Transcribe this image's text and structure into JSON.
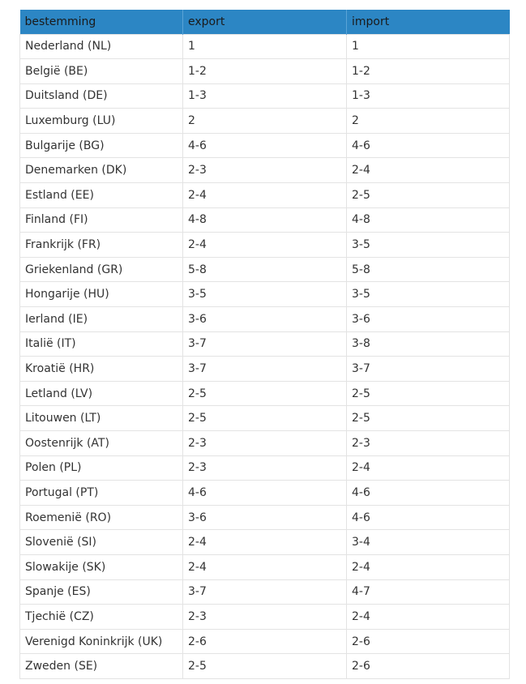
{
  "table": {
    "headers": [
      "bestemming",
      "export",
      "import"
    ],
    "rows": [
      [
        "Nederland (NL)",
        "1",
        "1"
      ],
      [
        "België (BE)",
        "1-2",
        "1-2"
      ],
      [
        "Duitsland (DE)",
        "1-3",
        "1-3"
      ],
      [
        "Luxemburg (LU)",
        "2",
        "2"
      ],
      [
        "Bulgarije (BG)",
        "4-6",
        "4-6"
      ],
      [
        "Denemarken (DK)",
        "2-3",
        "2-4"
      ],
      [
        "Estland (EE)",
        "2-4",
        "2-5"
      ],
      [
        "Finland (FI)",
        "4-8",
        "4-8"
      ],
      [
        "Frankrijk (FR)",
        "2-4",
        "3-5"
      ],
      [
        "Griekenland (GR)",
        "5-8",
        "5-8"
      ],
      [
        "Hongarije (HU)",
        "3-5",
        "3-5"
      ],
      [
        "Ierland (IE)",
        "3-6",
        "3-6"
      ],
      [
        "Italië (IT)",
        "3-7",
        "3-8"
      ],
      [
        "Kroatië (HR)",
        "3-7",
        "3-7"
      ],
      [
        "Letland (LV)",
        "2-5",
        "2-5"
      ],
      [
        "Litouwen (LT)",
        "2-5",
        "2-5"
      ],
      [
        "Oostenrijk (AT)",
        "2-3",
        "2-3"
      ],
      [
        "Polen (PL)",
        "2-3",
        "2-4"
      ],
      [
        "Portugal (PT)",
        "4-6",
        "4-6"
      ],
      [
        "Roemenië (RO)",
        "3-6",
        "4-6"
      ],
      [
        "Slovenië (SI)",
        "2-4",
        "3-4"
      ],
      [
        "Slowakije (SK)",
        "2-4",
        "2-4"
      ],
      [
        "Spanje (ES)",
        "3-7",
        "4-7"
      ],
      [
        "Tjechië (CZ)",
        "2-3",
        "2-4"
      ],
      [
        "Verenigd Koninkrijk (UK)",
        "2-6",
        "2-6"
      ],
      [
        "Zweden (SE)",
        "2-5",
        "2-6"
      ]
    ]
  },
  "colors": {
    "header_bg": "#2c86c4",
    "border": "#e3e3e3"
  }
}
